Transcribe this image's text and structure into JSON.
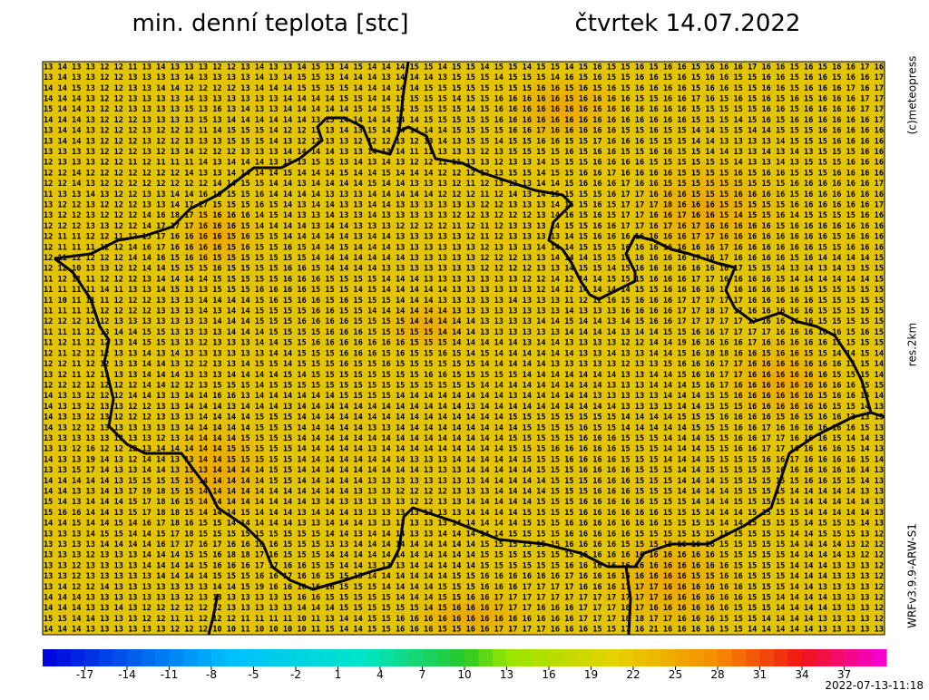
{
  "header": {
    "title": "min. denní teplota [stc]",
    "date": "čtvrtek 14.07.2022"
  },
  "side": {
    "copyright": "(c)meteopress",
    "resolution": "res.2km",
    "model": "WRFv3.9.9-ARW-S1"
  },
  "footer": {
    "timestamp": "2022-07-13-11:18"
  },
  "colorbar": {
    "lim": [
      -20,
      40
    ],
    "ticks": [
      -17,
      -14,
      -11,
      -8,
      -5,
      -2,
      1,
      4,
      7,
      10,
      13,
      16,
      19,
      22,
      25,
      28,
      31,
      34,
      37
    ]
  },
  "map": {
    "rows": [
      "13 14 13 13 12 12 11 13 14 13 13 13 12 12 13 14 13 13 14 15 13 14 15 14 14 14 15 15 14 15 15 14 15 15 14 15 15 14 15 16 15 15 16 15 16 16 15 16 16 16 17 16 16 15 16 15 16 16 17 16",
      "13 14 13 13 12 12 13 13 13 13 14 13 13 13 13 14 13 14 15 15 13 14 14 14 13 14 14 14 13 15 15 15 14 15 15 15 14 16 15 16 15 15 16 16 15 16 15 16 16 15 15 16 16 15 16 16 15 16 16 17",
      "14 14 15 13 12 12 13 13 14 14 12 12 12 12 13 14 14 14 15 15 15 15 14 14 14 14 14 15 15 15 15 15 15 15 15 16 16 15 16 15 16 15 16 16 16 16 15 16 16 15 15 16 16 15 16 16 16 17 16 17",
      "14 14 14 13 12 12 13 13 13 13 14 13 13 13 13 13 13 14 14 14 14 15 15 14 14 15 15 15 15 14 15 15 16 16 16 16 16 15 16 16 16 16 15 15 16 16 17 16 15 16 15 16 15 16 15 16 16 16 17 17",
      "15 14 14 13 12 12 13 13 13 13 15 13 16 13 14 13 13 14 14 14 14 14 15 14 15 15 15 15 15 15 14 15 16 16 16 16 16 16 16 16 16 16 16 16 16 16 15 15 15 15 15 16 16 15 16 16 16 16 17 17",
      "14 14 14 13 12 12 12 13 13 13 13 15 13 14 14 14 14 14 14 13 15 14 14 14 14 14 14 15 15 15 15 15 16 16 16 16 16 16 16 16 16 16 16 16 16 16 15 15 15 14 15 16 15 16 16 16 16 16 16 17",
      "13 14 14 13 12 12 12 13 12 12 12 11 14 15 15 15 14 12 12 13 13 14 13 15 14 14 14 14 14 15 15 15 15 16 16 17 16 16 16 16 16 15 15 16 15 15 14 14 15 15 14 14 15 15 15 16 16 16 16 16",
      "13 14 14 13 12 12 12 13 12 12 13 13 13 15 15 15 14 13 12 12 13 13 12 12 12 13 12 13 14 13 15 15 14 15 15 16 16 15 15 17 16 16 16 15 15 15 14 14 13 13 13 13 14 15 15 15 16 16 16 16",
      "13 13 13 13 12 12 12 13 12 13 14 12 12 12 13 13 13 14 14 14 14 13 13 14 13 14 11 11 13 13 13 12 13 15 15 15 15 16 15 16 16 15 15 16 16 15 15 14 14 13 13 14 13 14 13 15 15 15 16 16",
      "12 13 13 13 12 12 11 12 11 11 11 14 13 14 14 14 13 15 13 15 15 13 14 13 14 13 12 12 11 11 13 13 12 13 13 14 15 15 15 16 16 16 16 15 15 15 15 15 15 14 13 13 14 13 15 15 15 16 16 16",
      "12 12 14 12 12 12 12 12 12 12 14 13 13 14 14 14 14 15 14 14 14 15 14 14 15 14 14 14 12 12 12 12 13 15 15 14 15 15 16 16 17 16 16 16 16 15 15 15 15 16 15 16 16 15 15 15 16 16 16 16",
      "12 12 14 13 12 12 12 12 12 12 12 12 14 14 15 15 14 14 13 14 14 14 14 15 14 14 13 13 13 12 11 12 13 12 13 14 14 15 16 16 16 17 16 16 15 15 15 15 15 15 15 15 15 16 16 16 16 16 16 17",
      "11 13 13 14 13 12 12 13 13 14 14 16 16 15 15 16 14 14 14 14 13 13 13 14 14 14 14 14 12 12 12 11 12 14 13 14 15 15 15 15 16 17 17 16 16 16 15 15 15 16 16 16 16 15 16 16 16 16 16 16",
      "13 12 12 13 12 12 12 13 13 14 17 17 15 15 15 16 15 14 13 14 14 13 13 14 14 13 13 13 13 13 13 12 12 13 13 13 14 16 15 16 15 17 17 17 18 16 16 16 15 15 15 15 15 16 16 16 16 16 16 17",
      "13 12 12 13 12 12 12 14 16 18 17 15 16 16 16 14 15 14 13 13 14 13 13 14 13 13 13 13 13 12 12 13 12 12 12 13 14 16 15 16 15 17 17 16 16 17 16 16 15 14 15 15 16 14 15 15 15 15 16 16",
      "12 12 12 13 13 12 12 14 17 17 17 16 16 16 15 14 14 14 14 13 14 14 13 13 13 12 12 12 12 11 12 11 12 13 13 13 14 15 15 16 16 17 17 16 17 16 17 16 16 16 16 16 15 16 16 16 16 16 16 16",
      "12 11 11 12 12 11 12 15 17 16 16 16 16 15 16 15 15 14 14 14 14 14 13 14 14 13 13 13 13 13 12 11 12 13 13 13 13 14 15 16 16 16 16 16 16 16 17 17 16 16 16 16 16 16 16 16 15 16 16 16",
      "12 11 11 11 12 12 14 16 17 16 16 16 16 15 16 15 15 16 15 14 14 15 14 14 14 13 13 13 13 13 13 12 13 13 13 14 14 14 15 15 15 16 16 16 16 16 16 16 17 16 16 16 16 16 16 15 15 16 16 16",
      "12 11 12 12 12 12 14 14 16 15 16 16 15 15 15 15 15 15 15 14 14 14 14 14 14 14 13 13 13 13 13 12 12 12 13 13 14 14 14 15 15 16 16 16 16 16 17 16 17 16 16 16 16 15 16 14 14 14 14 15",
      "12 12 10 13 13 12 12 14 14 15 15 15 16 15 15 15 15 16 16 15 14 14 14 14 13 13 13 13 13 13 13 12 12 12 12 13 13 14 15 15 14 15 16 16 16 16 16 16 16 17 15 15 14 13 14 13 14 13 15 15",
      "11 12 11 11 12 12 12 13 14 14 14 14 15 15 15 15 15 16 16 16 15 15 15 15 14 14 14 13 13 13 13 13 13 13 12 12 14 12 14 14 15 15 15 16 16 16 17 17 16 16 16 16 15 14 14 14 14 14 14 15",
      "11 11 11 11 14 11 13 13 14 15 13 13 15 15 15 16 16 16 16 15 15 15 14 15 14 14 14 14 14 13 13 13 13 13 13 12 14 12 14 14 14 14 15 15 16 16 16 16 17 16 16 16 16 16 15 15 15 15 15 15",
      "11 10 11 11 11 12 12 12 13 13 13 14 14 14 14 15 16 15 16 16 15 16 15 15 15 14 14 14 13 13 13 13 13 14 13 13 13 11 12 12 16 15 16 16 16 17 17 17 17 17 16 16 16 16 16 15 15 15 15 15",
      "11 11 11 12 12 12 12 12 13 13 13 14 13 14 14 15 15 15 15 16 16 15 15 14 14 14 14 14 14 13 13 13 13 13 13 13 13 14 13 13 13 16 16 16 16 17 17 18 17 17 16 16 16 16 16 15 15 15 15 15",
      "12 12 12 12 12 13 13 13 13 13 13 13 14 14 14 15 15 15 16 16 16 16 15 15 15 15 14 14 14 14 14 13 13 13 13 14 14 15 14 14 13 14 15 16 16 17 17 17 17 17 17 16 16 16 16 15 15 15 15 15",
      "11 11 11 12 13 14 14 15 15 13 13 13 13 14 14 14 15 15 15 15 16 16 16 15 15 15 15 15 14 14 14 13 13 13 13 13 13 14 14 14 14 13 14 14 15 15 16 16 17 17 17 17 16 16 16 16 16 15 16 15",
      "11 12 11 12 12 13 14 15 15 13 13 12 13 13 13 14 14 15 15 16 16 16 16 16 16 16 15 15 15 14 14 14 14 14 13 14 14 13 13 13 13 12 12 14 14 19 16 16 16 16 17 16 16 16 16 16 15 15 15 15",
      "12 11 12 12 12 13 13 14 13 14 13 13 13 13 13 13 14 14 15 15 15 16 16 16 15 16 15 15 16 15 14 15 14 14 14 14 14 14 13 13 14 13 13 14 14 15 16 18 18 16 16 15 16 16 15 15 14 14 15 14",
      "12 12 11 12 12 13 13 14 14 13 12 12 13 13 14 15 15 14 15 15 15 16 15 15 16 15 15 15 15 15 15 14 14 14 14 14 13 13 13 13 13 12 13 13 15 16 16 16 17 17 16 16 16 16 16 16 16 15 15 14",
      "13 12 11 12 13 13 13 14 14 14 13 13 13 14 14 14 14 15 14 15 15 15 15 15 15 15 15 16 16 15 15 15 15 15 14 14 14 14 14 14 14 13 13 14 14 15 16 16 17 17 16 16 16 16 16 16 15 15 15 14",
      "12 12 12 12 12 12 12 14 14 12 12 13 15 15 15 14 15 15 15 15 15 15 15 15 15 15 15 15 15 15 15 14 14 14 14 14 14 14 14 14 13 13 13 14 14 14 15 16 17 16 16 16 16 16 16 16 16 16 15 15",
      "14 13 13 12 12 12 14 14 13 13 14 14 16 16 13 14 14 14 14 14 14 15 15 15 15 14 14 14 14 14 14 14 14 13 14 14 14 14 14 13 13 13 13 13 14 14 14 15 15 16 16 16 16 16 16 15 16 16 15 14",
      "14 13 13 12 13 13 12 12 13 13 14 14 14 13 14 14 14 13 14 14 14 14 14 14 14 14 14 14 14 14 13 14 14 14 14 14 14 14 14 14 14 13 13 13 13 14 14 15 15 15 16 16 16 16 16 16 15 15 14 13",
      "14 13 13 12 13 12 12 12 13 13 13 14 14 14 14 15 15 15 14 14 14 14 14 14 14 14 14 14 14 14 14 14 14 15 15 15 15 15 15 15 15 14 14 14 14 15 15 15 16 16 16 16 15 16 15 16 16 13 13 13",
      "14 13 12 12 13 13 13 13 13 13 14 14 14 14 14 15 15 15 14 14 14 14 14 13 13 14 14 14 14 14 14 14 14 14 15 15 15 15 16 15 15 14 14 14 14 14 15 15 15 16 16 17 16 16 16 16 16 16 15 13",
      "13 13 13 13 13 13 13 13 12 13 14 14 14 14 15 15 15 15 14 14 14 14 14 14 14 14 14 14 14 14 14 14 14 15 15 15 15 15 16 16 16 15 15 15 14 14 14 15 15 16 16 17 17 16 16 16 15 14 14 13",
      "13 13 12 16 12 12 12 13 14 14 14 14 14 15 15 15 15 15 14 14 14 14 14 13 14 14 14 14 14 14 14 14 14 15 15 15 16 16 16 16 16 15 15 15 14 14 14 15 15 16 16 17 17 16 16 16 16 15 14 13",
      "14 13 13 19 14 13 12 14 14 13 13 14 14 15 15 15 15 15 14 14 14 14 14 14 14 14 13 13 13 14 14 14 14 14 15 15 15 16 16 16 16 15 15 15 14 14 14 15 15 15 15 16 16 17 16 16 16 16 15 14",
      "13 13 15 17 14 13 13 14 14 13 13 13 14 14 14 14 15 15 14 14 14 14 14 14 14 14 14 13 13 13 14 14 14 14 14 15 15 15 16 16 16 16 15 15 15 14 14 15 15 15 15 15 16 16 16 16 16 16 14 13",
      "14 14 14 14 14 13 15 15 15 15 15 14 14 14 14 14 15 15 14 14 14 14 14 13 13 13 13 13 13 13 13 14 14 14 14 14 15 15 15 16 16 16 15 15 15 14 14 14 15 15 15 15 15 15 16 16 15 15 14 13",
      "14 14 13 13 14 13 17 19 18 15 15 14 14 14 14 14 14 14 14 14 14 14 13 13 13 12 12 12 12 13 13 13 14 14 14 14 15 15 15 16 16 16 15 15 15 14 14 14 14 15 15 15 15 14 14 14 14 14 13 13",
      "15 14 13 14 14 14 15 17 18 16 15 14 14 14 14 14 14 14 14 13 14 13 13 13 13 13 12 12 13 13 14 14 14 14 14 15 15 15 16 16 16 16 16 15 15 15 14 14 14 15 15 15 15 14 14 14 14 14 14 13",
      "15 16 16 14 14 13 15 17 18 18 15 14 14 14 15 14 14 14 13 14 14 14 13 13 13 13 13 13 13 13 14 14 14 14 15 15 15 15 16 16 16 16 16 16 15 15 15 14 14 14 15 15 15 15 14 14 14 14 14 13",
      "14 14 15 14 14 15 14 16 17 18 16 15 15 14 14 14 14 14 13 13 14 14 14 13 13 13 13 13 13 14 14 14 14 14 15 15 15 16 16 16 16 16 16 16 15 15 15 15 14 14 15 15 15 15 14 15 15 15 14 13",
      "13 13 13 14 15 15 14 14 15 17 18 15 15 15 15 15 15 15 15 15 14 14 13 14 14 14 13 13 14 14 14 14 14 15 15 15 15 16 16 16 16 16 15 15 15 15 15 15 15 15 15 15 15 14 14 15 15 15 13 12",
      "13 13 13 13 14 14 14 14 16 17 17 16 17 16 16 16 16 15 15 15 13 13 14 14 14 14 14 14 14 14 14 15 15 15 15 15 15 16 16 16 16 15 15 15 15 16 16 16 15 15 15 15 15 14 14 14 14 13 12 12",
      "13 13 13 12 13 13 13 14 14 14 15 15 16 18 18 17 16 15 15 15 14 14 14 14 14 14 14 14 14 14 14 15 15 15 15 15 15 15 16 16 16 16 16 16 16 16 16 16 15 15 15 15 15 14 14 14 14 13 12 12",
      "13 13 12 13 13 13 13 14 14 14 14 15 16 16 16 17 17 16 16 15 15 14 14 13 13 13 14 14 14 14 14 15 15 15 15 15 15 16 16 16 16 16 16 16 16 16 16 16 16 15 15 15 15 14 14 14 13 13 13 12",
      "13 13 12 13 13 13 13 13 14 14 14 14 15 15 15 16 16 17 16 16 15 15 15 14 14 14 14 14 14 15 15 16 16 16 16 16 16 17 16 16 16 16 16 16 16 16 15 15 16 16 15 15 15 14 14 14 13 13 13 12",
      "13 14 12 12 14 13 13 13 13 13 13 13 14 14 15 19 16 16 16 16 16 15 15 15 14 14 14 14 15 15 15 16 16 16 17 17 17 17 16 16 16 17 17 17 16 16 16 16 16 16 15 15 15 14 14 13 13 13 13 12",
      "14 14 14 13 13 13 13 13 13 13 12 13 13 13 13 13 13 15 16 16 15 15 15 15 15 14 14 14 15 15 16 16 17 17 17 17 17 17 17 17 17 17 17 17 16 16 16 16 16 16 15 15 14 14 14 14 13 13 13 12",
      "14 14 14 13 13 14 13 12 12 12 12 12 12 13 13 13 13 13 14 14 14 15 15 15 15 15 15 14 15 16 16 16 17 17 17 16 16 16 17 17 17 18 17 16 16 16 16 16 16 15 15 15 14 14 14 14 13 13 13 12",
      "15 15 14 14 13 13 13 12 12 11 11 12 12 12 11 11 11 11 10 11 13 14 14 15 15 16 16 16 16 16 16 16 16 16 16 16 16 16 17 17 17 18 18 17 17 16 16 16 15 15 15 14 14 14 14 13 13 13 13 12",
      "14 14 14 13 13 13 13 13 13 12 12 12 10 10 11 10 10 10 10 11 15 14 14 15 15 16 16 16 15 15 16 16 17 17 17 17 16 16 16 15 15 17 16 21 16 16 16 16 15 15 14 14 14 14 14 13 13 13 13 13"
    ]
  }
}
